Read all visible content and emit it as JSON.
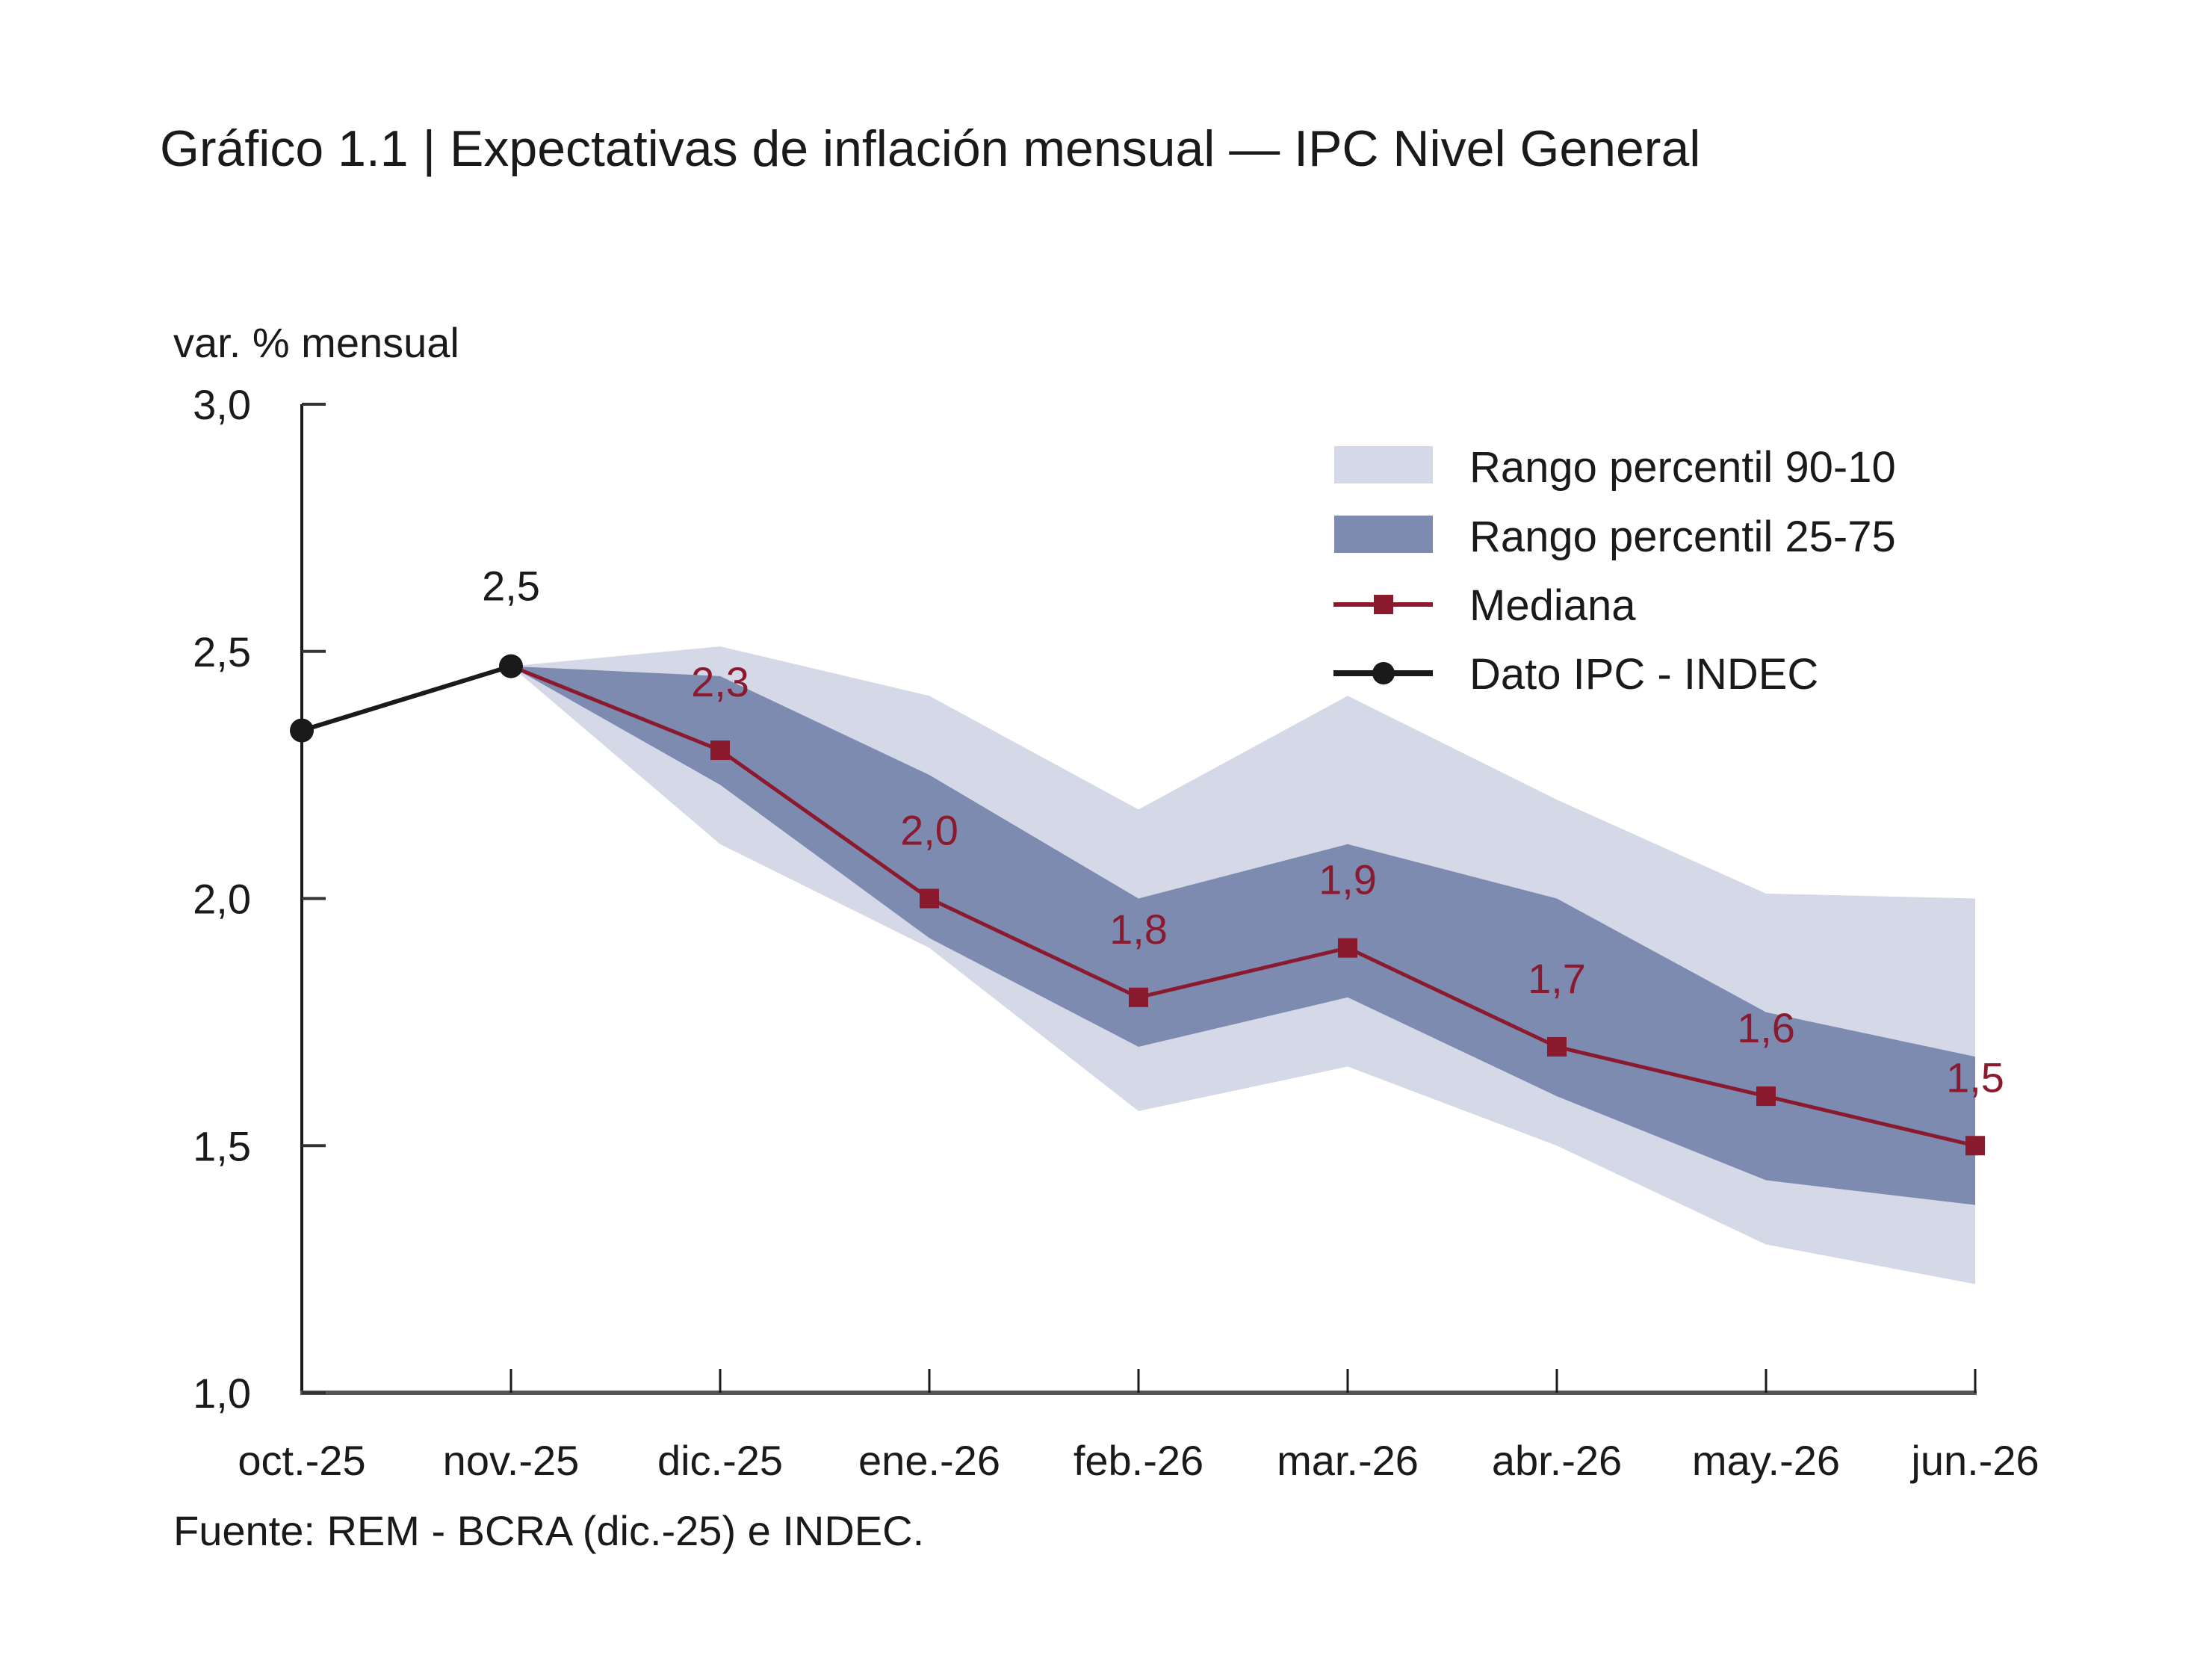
{
  "chart_data": {
    "type": "line",
    "title": "Gráfico 1.1 | Expectativas de inflación mensual — IPC Nivel General",
    "ylabel": "var. % mensual",
    "xlabel": "",
    "source": "Fuente: REM - BCRA (dic.-25) e INDEC.",
    "ylim": [
      1.0,
      3.0
    ],
    "yticks": [
      1.0,
      1.5,
      2.0,
      2.5,
      3.0
    ],
    "ytick_labels": [
      "1,0",
      "1,5",
      "2,0",
      "2,5",
      "3,0"
    ],
    "grid": false,
    "legend_position": "top-right",
    "categories": [
      "oct.-25",
      "nov.-25",
      "dic.-25",
      "ene.-26",
      "feb.-26",
      "mar.-26",
      "abr.-26",
      "may.-26",
      "jun.-26"
    ],
    "series": [
      {
        "name": "Rango percentil 90-10",
        "kind": "band",
        "color": "#d5d9e7",
        "start_index": 1,
        "upper": [
          2.47,
          2.51,
          2.41,
          2.18,
          2.41,
          2.2,
          2.01,
          2.0
        ],
        "lower": [
          2.47,
          2.11,
          1.9,
          1.57,
          1.66,
          1.5,
          1.3,
          1.22
        ]
      },
      {
        "name": "Rango percentil 25-75",
        "kind": "band",
        "color": "#7d8bb1",
        "start_index": 1,
        "upper": [
          2.47,
          2.45,
          2.25,
          2.0,
          2.11,
          2.0,
          1.77,
          1.68
        ],
        "lower": [
          2.47,
          2.23,
          1.92,
          1.7,
          1.8,
          1.6,
          1.43,
          1.38
        ]
      },
      {
        "name": "Mediana",
        "kind": "line-square",
        "color": "#8b1a2e",
        "start_index": 1,
        "values": [
          2.47,
          2.3,
          2.0,
          1.8,
          1.9,
          1.7,
          1.6,
          1.5
        ],
        "labels": [
          "",
          "2,3",
          "2,0",
          "1,8",
          "1,9",
          "1,7",
          "1,6",
          "1,5"
        ]
      },
      {
        "name": "Dato IPC - INDEC",
        "kind": "line-circle",
        "color": "#1a1a1a",
        "start_index": 0,
        "values": [
          2.34,
          2.47
        ],
        "labels": [
          "",
          "2,5"
        ]
      }
    ]
  }
}
